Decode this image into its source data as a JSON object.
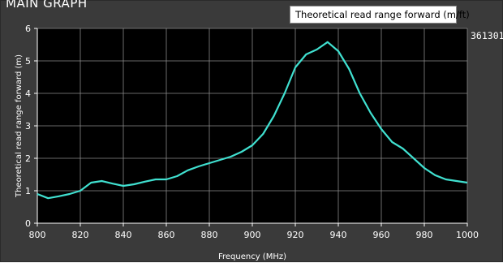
{
  "graph": {
    "title": "MAIN GRAPH",
    "legend": "Theoretical read range forward (m/ft)",
    "series_tag": "361301"
  },
  "chart_data": {
    "type": "line",
    "xlabel": "Frequency (MHz)",
    "ylabel": "Theoretical read range forward (m)",
    "xlim": [
      800,
      1000
    ],
    "ylim": [
      0,
      6
    ],
    "xticks": [
      800,
      820,
      840,
      860,
      880,
      900,
      920,
      940,
      960,
      980,
      1000
    ],
    "yticks": [
      0,
      1,
      2,
      3,
      4,
      5,
      6
    ],
    "grid": true,
    "series": [
      {
        "color": "#40e0d0",
        "x": [
          800,
          805,
          810,
          815,
          820,
          825,
          830,
          835,
          840,
          845,
          850,
          855,
          860,
          865,
          870,
          875,
          880,
          885,
          890,
          895,
          900,
          905,
          910,
          915,
          920,
          925,
          930,
          935,
          940,
          945,
          950,
          955,
          960,
          965,
          970,
          975,
          980,
          985,
          990,
          995,
          1000
        ],
        "y": [
          0.9,
          0.77,
          0.83,
          0.9,
          1.0,
          1.25,
          1.3,
          1.22,
          1.15,
          1.2,
          1.28,
          1.35,
          1.35,
          1.45,
          1.63,
          1.75,
          1.85,
          1.95,
          2.05,
          2.2,
          2.4,
          2.75,
          3.3,
          4.0,
          4.8,
          5.2,
          5.35,
          5.58,
          5.3,
          4.75,
          4.0,
          3.4,
          2.9,
          2.5,
          2.3,
          2.0,
          1.7,
          1.48,
          1.35,
          1.3,
          1.25
        ]
      }
    ]
  }
}
